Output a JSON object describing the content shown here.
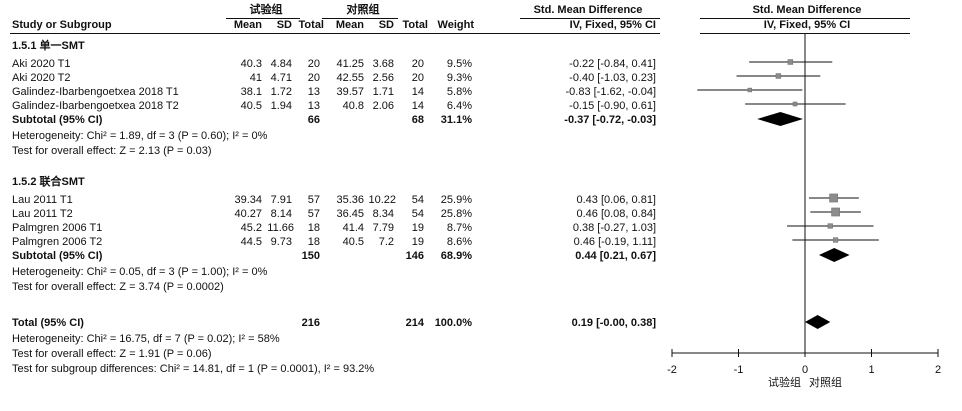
{
  "headers": {
    "exp_group": "试验组",
    "ctrl_group": "对照组",
    "col_study": "Study or Subgroup",
    "col_mean": "Mean",
    "col_sd": "SD",
    "col_total": "Total",
    "col_weight": "Weight",
    "smd_title": "Std. Mean Difference",
    "smd_sub": "IV, Fixed, 95% CI",
    "plot_title": "Std. Mean Difference",
    "plot_sub": "IV, Fixed, 95% CI"
  },
  "subgroup1": {
    "title": "1.5.1 单一SMT",
    "rows": [
      {
        "study": "Aki 2020 T1",
        "m1": "40.3",
        "sd1": "4.84",
        "n1": "20",
        "m2": "41.25",
        "sd2": "3.68",
        "n2": "20",
        "weight": "9.5%",
        "ci": "-0.22 [-0.84, 0.41]"
      },
      {
        "study": "Aki 2020 T2",
        "m1": "41",
        "sd1": "4.71",
        "n1": "20",
        "m2": "42.55",
        "sd2": "2.56",
        "n2": "20",
        "weight": "9.3%",
        "ci": "-0.40 [-1.03, 0.23]"
      },
      {
        "study": "Galindez-Ibarbengoetxea 2018 T1",
        "m1": "38.1",
        "sd1": "1.72",
        "n1": "13",
        "m2": "39.57",
        "sd2": "1.71",
        "n2": "14",
        "weight": "5.8%",
        "ci": "-0.83 [-1.62, -0.04]"
      },
      {
        "study": "Galindez-Ibarbengoetxea 2018 T2",
        "m1": "40.5",
        "sd1": "1.94",
        "n1": "13",
        "m2": "40.8",
        "sd2": "2.06",
        "n2": "14",
        "weight": "6.4%",
        "ci": "-0.15 [-0.90, 0.61]"
      }
    ],
    "subtotal_label": "Subtotal (95% CI)",
    "subtotal_n1": "66",
    "subtotal_n2": "68",
    "subtotal_weight": "31.1%",
    "subtotal_ci": "-0.37 [-0.72, -0.03]",
    "heterogeneity": "Heterogeneity: Chi² = 1.89, df = 3 (P = 0.60); I² = 0%",
    "overall": "Test for overall effect: Z = 2.13 (P = 0.03)"
  },
  "subgroup2": {
    "title": "1.5.2 联合SMT",
    "rows": [
      {
        "study": "Lau 2011 T1",
        "m1": "39.34",
        "sd1": "7.91",
        "n1": "57",
        "m2": "35.36",
        "sd2": "10.22",
        "n2": "54",
        "weight": "25.9%",
        "ci": "0.43 [0.06, 0.81]"
      },
      {
        "study": "Lau 2011 T2",
        "m1": "40.27",
        "sd1": "8.14",
        "n1": "57",
        "m2": "36.45",
        "sd2": "8.34",
        "n2": "54",
        "weight": "25.8%",
        "ci": "0.46 [0.08, 0.84]"
      },
      {
        "study": "Palmgren 2006 T1",
        "m1": "45.2",
        "sd1": "11.66",
        "n1": "18",
        "m2": "41.4",
        "sd2": "7.79",
        "n2": "19",
        "weight": "8.7%",
        "ci": "0.38 [-0.27, 1.03]"
      },
      {
        "study": "Palmgren 2006 T2",
        "m1": "44.5",
        "sd1": "9.73",
        "n1": "18",
        "m2": "40.5",
        "sd2": "7.2",
        "n2": "19",
        "weight": "8.6%",
        "ci": "0.46 [-0.19, 1.11]"
      }
    ],
    "subtotal_label": "Subtotal (95% CI)",
    "subtotal_n1": "150",
    "subtotal_n2": "146",
    "subtotal_weight": "68.9%",
    "subtotal_ci": "0.44 [0.21, 0.67]",
    "heterogeneity": "Heterogeneity: Chi² = 0.05, df = 3 (P = 1.00); I² = 0%",
    "overall": "Test for overall effect: Z = 3.74 (P = 0.0002)"
  },
  "total": {
    "label": "Total (95% CI)",
    "n1": "216",
    "n2": "214",
    "weight": "100.0%",
    "ci": "0.19 [-0.00, 0.38]",
    "heterogeneity": "Heterogeneity: Chi² = 16.75, df = 7 (P = 0.02); I² = 58%",
    "overall": "Test for overall effect: Z = 1.91 (P = 0.06)",
    "subgroup_diff": "Test for subgroup differences: Chi² = 14.81, df = 1 (P = 0.0001), I² = 93.2%"
  },
  "chart_data": {
    "type": "forest",
    "xlim": [
      -2,
      2
    ],
    "ticks": [
      -2,
      -1,
      0,
      1,
      2
    ],
    "tick_labels": [
      "-2",
      "-1",
      "0",
      "1",
      "2"
    ],
    "favours_left": "试验组",
    "favours_right": "对照组",
    "studies": [
      {
        "name": "Aki 2020 T1",
        "est": -0.22,
        "lo": -0.84,
        "hi": 0.41,
        "weight": 9.5
      },
      {
        "name": "Aki 2020 T2",
        "est": -0.4,
        "lo": -1.03,
        "hi": 0.23,
        "weight": 9.3
      },
      {
        "name": "Galindez-Ibarbengoetxea 2018 T1",
        "est": -0.83,
        "lo": -1.62,
        "hi": -0.04,
        "weight": 5.8
      },
      {
        "name": "Galindez-Ibarbengoetxea 2018 T2",
        "est": -0.15,
        "lo": -0.9,
        "hi": 0.61,
        "weight": 6.4
      },
      {
        "name": "Lau 2011 T1",
        "est": 0.43,
        "lo": 0.06,
        "hi": 0.81,
        "weight": 25.9
      },
      {
        "name": "Lau 2011 T2",
        "est": 0.46,
        "lo": 0.08,
        "hi": 0.84,
        "weight": 25.8
      },
      {
        "name": "Palmgren 2006 T1",
        "est": 0.38,
        "lo": -0.27,
        "hi": 1.03,
        "weight": 8.7
      },
      {
        "name": "Palmgren 2006 T2",
        "est": 0.46,
        "lo": -0.19,
        "hi": 1.11,
        "weight": 8.6
      }
    ],
    "summaries": [
      {
        "name": "Subtotal 1.5.1",
        "est": -0.37,
        "lo": -0.72,
        "hi": -0.03
      },
      {
        "name": "Subtotal 1.5.2",
        "est": 0.44,
        "lo": 0.21,
        "hi": 0.67
      },
      {
        "name": "Total",
        "est": 0.19,
        "lo": -0.0,
        "hi": 0.38
      }
    ]
  }
}
